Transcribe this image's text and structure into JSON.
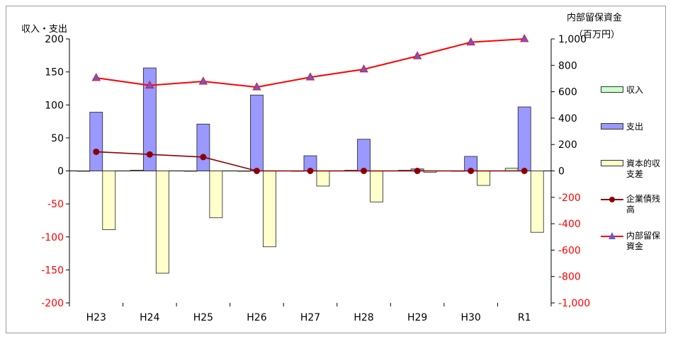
{
  "chart_data": {
    "type": "bar",
    "left_axis_title": "収入・支出",
    "right_axis_title_1": "内部留保資金",
    "right_axis_title_2": "（百万円）",
    "categories": [
      "H23",
      "H24",
      "H25",
      "H26",
      "H27",
      "H28",
      "H29",
      "H30",
      "R1"
    ],
    "left_ticks": [
      "200",
      "150",
      "100",
      "50",
      "0",
      "-50",
      "-100",
      "-150",
      "-200"
    ],
    "right_ticks": [
      "1,000",
      "800",
      "600",
      "400",
      "200",
      "0",
      "-200",
      "-400",
      "-600",
      "-800",
      "-1,000"
    ],
    "ylim_left": [
      -200,
      200
    ],
    "ylim_right": [
      -1000,
      1000
    ],
    "series": [
      {
        "name": "収入",
        "type": "bar",
        "axis": "left",
        "color": "#ccffcc",
        "values": [
          0,
          1,
          0,
          0,
          0,
          1,
          1,
          0,
          4
        ]
      },
      {
        "name": "支出",
        "type": "bar",
        "axis": "left",
        "color": "#9999ff",
        "values": [
          89,
          156,
          71,
          115,
          23,
          48,
          3,
          22,
          97
        ]
      },
      {
        "name": "資本的収支差",
        "type": "bar",
        "axis": "left",
        "color": "#ffffcc",
        "values": [
          -89,
          -155,
          -71,
          -115,
          -23,
          -47,
          -2,
          -22,
          -93
        ]
      },
      {
        "name": "企業債残高",
        "type": "line",
        "axis": "right",
        "color": "#8b0000",
        "values": [
          145,
          125,
          105,
          0,
          0,
          0,
          0,
          0,
          0
        ]
      },
      {
        "name": "内部留保資金",
        "type": "line",
        "axis": "right",
        "color": "#ff0000",
        "values": [
          705,
          648,
          678,
          635,
          710,
          770,
          870,
          975,
          1000
        ]
      }
    ],
    "grid": false,
    "legend_position": "right"
  },
  "legend": {
    "item1": "収入",
    "item2": "支出",
    "item3": "資本的収支差",
    "item4": "企業債残高",
    "item5": "内部留保資金"
  }
}
